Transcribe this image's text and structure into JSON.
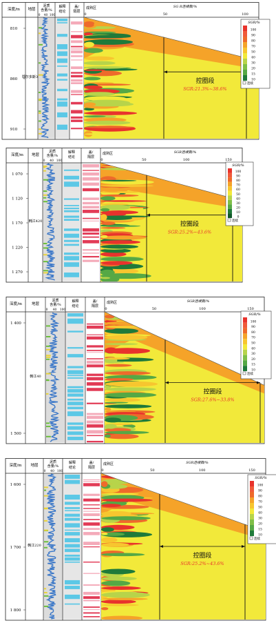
{
  "chart_data": [
    {
      "type": "heatmap",
      "headers": {
        "depth": "深度/m",
        "strata": "地层",
        "shale_line1": "泥质",
        "shale_line2": "含量/%",
        "shale_ticks": [
          "0",
          "40",
          "100"
        ],
        "interp": "解释结论",
        "cap": "盖/隔层",
        "zone": "成熟区",
        "sgr_axis": "SG R连续数/%"
      },
      "depth_ticks": [
        "810",
        "860",
        "910"
      ],
      "strata_label": "鄂尔多斯3段",
      "axis_ticks": [
        "0",
        "50",
        "100"
      ],
      "legend": {
        "title": "SGR/%",
        "levels": [
          "100",
          "90",
          "80",
          "70",
          "50",
          "40",
          "30",
          "20",
          "15",
          "10"
        ],
        "extra": "连续"
      },
      "band": {
        "label": "控圈段",
        "range": "SGR:21.3%~38.6%"
      }
    },
    {
      "type": "heatmap",
      "headers": {
        "depth": "深度/m",
        "strata": "地层",
        "shale_line1": "泥质",
        "shale_line2": "含量/%",
        "shale_ticks": [
          "0",
          "40",
          "100"
        ],
        "interp": "解释结论",
        "cap": "盖/隔层",
        "zone": "成熟区",
        "sgr_axis": "SGR连续数/%"
      },
      "depth_ticks": [
        "1 070",
        "1 120",
        "1 170",
        "1 220",
        "1 270"
      ],
      "strata_label": "韩江420",
      "axis_ticks": [
        "0",
        "50",
        "100",
        "150"
      ],
      "legend": {
        "title": "SGR/%",
        "levels": [
          "100",
          "90",
          "80",
          "70",
          "60",
          "50",
          "40",
          "30",
          "20",
          "10",
          "0"
        ],
        "extra": "连续"
      },
      "band": {
        "label": "控圈段",
        "range": "SGR:25.2%~43.6%"
      }
    },
    {
      "type": "heatmap",
      "headers": {
        "depth": "深度/m",
        "strata": "地层",
        "shale_line1": "泥质",
        "shale_line2": "含量/%",
        "shale_ticks": [
          "0",
          "40",
          "100"
        ],
        "interp": "解释结论",
        "cap": "盖/隔层",
        "zone": "成熟区",
        "sgr_axis": "SGR连续数/%"
      },
      "depth_ticks": [
        "1 400",
        "1 500"
      ],
      "strata_label": "韩江40",
      "axis_ticks": [
        "0",
        "50",
        "100",
        "150"
      ],
      "legend": {
        "title": "SGR/%",
        "levels": [
          "100",
          "90",
          "80",
          "70",
          "50",
          "40",
          "30",
          "20",
          "15",
          "10"
        ],
        "extra": "连续"
      },
      "band": {
        "label": "控圈段",
        "range": "SGR:27.6%~33.8%"
      }
    },
    {
      "type": "heatmap",
      "headers": {
        "depth": "深度/m",
        "strata": "地层",
        "shale_line1": "泥质",
        "shale_line2": "含量/%",
        "shale_ticks": [
          "0",
          "40",
          "100"
        ],
        "interp": "解释结论",
        "cap": "盖/隔层",
        "zone": "成熟区",
        "sgr_axis": "SGR连续数/%"
      },
      "depth_ticks": [
        "1 600",
        "1 700",
        "1 800"
      ],
      "strata_label": "韩江220",
      "axis_ticks": [
        "0",
        "50",
        "100",
        "150"
      ],
      "legend": {
        "title": "SGR/%",
        "levels": [
          "100",
          "90",
          "80",
          "70",
          "50",
          "40",
          "30",
          "20",
          "15",
          "10"
        ],
        "extra": "连续"
      },
      "band": {
        "label": "控圈段",
        "range": "SGR:25.2%~43.6%"
      }
    }
  ],
  "colors": {
    "red": "#e8332c",
    "orange_red": "#ee6a2b",
    "orange": "#f5a329",
    "yellow_orange": "#f7c62f",
    "yellow": "#f2e93a",
    "light_green": "#b7d44a",
    "green": "#55a845",
    "dark_green": "#1f7a3a",
    "log_blue": "#3a77c8",
    "interp_cyan": "#5cc8e6",
    "cap_red": "#e23b56",
    "cap_pink": "#f4aab9"
  }
}
